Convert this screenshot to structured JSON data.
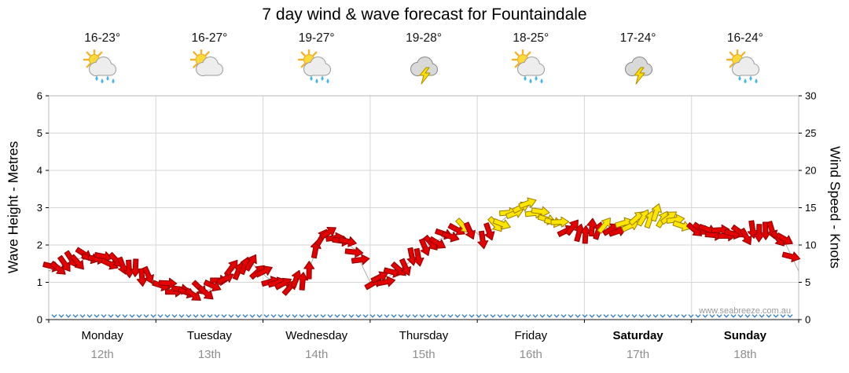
{
  "title": "7 day wind & wave forecast for Fountaindale",
  "watermark": "www.seabreeze.com.au",
  "days": [
    {
      "name": "Monday",
      "date": "12th",
      "temp": "16-23°",
      "icon": "sun-cloud-rain",
      "bold": false
    },
    {
      "name": "Tuesday",
      "date": "13th",
      "temp": "16-27°",
      "icon": "sun-cloud",
      "bold": false
    },
    {
      "name": "Wednesday",
      "date": "14th",
      "temp": "19-27°",
      "icon": "sun-cloud-rain",
      "bold": false
    },
    {
      "name": "Thursday",
      "date": "15th",
      "temp": "19-28°",
      "icon": "storm",
      "bold": false
    },
    {
      "name": "Friday",
      "date": "16th",
      "temp": "18-25°",
      "icon": "sun-cloud-rain",
      "bold": false
    },
    {
      "name": "Saturday",
      "date": "17th",
      "temp": "17-24°",
      "icon": "storm",
      "bold": true
    },
    {
      "name": "Sunday",
      "date": "18th",
      "temp": "16-24°",
      "icon": "sun-cloud-rain",
      "bold": true
    }
  ],
  "axes": {
    "left_label": "Wave Height - Metres",
    "right_label": "Wind Speed - Knots",
    "left_ticks": [
      0,
      1,
      2,
      3,
      4,
      5,
      6
    ],
    "right_ticks": [
      0,
      5,
      10,
      15,
      20,
      25,
      30
    ]
  },
  "chart_data": {
    "type": "line",
    "title": "7 day wind & wave forecast for Fountaindale",
    "x_axis": {
      "unit": "days",
      "range": [
        0,
        7
      ],
      "tick_labels": [
        "Monday 12th",
        "Tuesday 13th",
        "Wednesday 14th",
        "Thursday 15th",
        "Friday 16th",
        "Saturday 17th",
        "Sunday 18th"
      ]
    },
    "left_axis": {
      "label": "Wave Height - Metres",
      "range": [
        0,
        6
      ],
      "ticks": [
        0,
        1,
        2,
        3,
        4,
        5,
        6
      ]
    },
    "right_axis": {
      "label": "Wind Speed - Knots",
      "range": [
        0,
        30
      ],
      "ticks": [
        0,
        5,
        10,
        15,
        20,
        25,
        30
      ]
    },
    "grid": true,
    "legend": false,
    "series": [
      {
        "name": "Wind Speed",
        "axis": "right",
        "unit": "knots",
        "marker": "direction-arrow",
        "x": [
          0.0,
          0.15,
          0.35,
          0.55,
          0.75,
          0.95,
          1.1,
          1.3,
          1.5,
          1.7,
          1.9,
          2.05,
          2.2,
          2.4,
          2.55,
          2.7,
          2.85,
          3.0,
          3.15,
          3.35,
          3.55,
          3.75,
          3.9,
          4.05,
          4.25,
          4.45,
          4.6,
          4.8,
          5.0,
          5.15,
          5.3,
          5.5,
          5.7,
          5.9,
          6.1,
          6.3,
          6.5,
          6.7,
          6.85,
          7.0
        ],
        "values": [
          6.5,
          7.5,
          8.5,
          8.0,
          7.0,
          5.5,
          4.5,
          3.5,
          4.0,
          6.5,
          7.5,
          5.5,
          4.5,
          5.5,
          11.5,
          11.0,
          9.5,
          5.0,
          5.5,
          7.5,
          10.0,
          11.5,
          12.6,
          11.0,
          13.5,
          15.5,
          14.0,
          12.5,
          11.5,
          12.5,
          12.0,
          13.5,
          14.0,
          13.0,
          12.0,
          11.5,
          11.5,
          12.0,
          11.0,
          6.5
        ]
      },
      {
        "name": "Wave Height",
        "axis": "left",
        "unit": "m",
        "marker": "tick",
        "x": [
          0,
          7
        ],
        "values": [
          0.1,
          0.1
        ]
      }
    ]
  },
  "style": {
    "arrow_red": "#e30000",
    "arrow_red_stroke": "#8d0000",
    "arrow_yellow": "#ffe600",
    "arrow_yellow_stroke": "#9c7c00",
    "yellow_threshold_knots": 12.5,
    "wave_color": "#2f7cc4",
    "grid_color": "#d6d6d6",
    "border_color": "#b8b8b8",
    "axis_color": "#444444",
    "tick_label_color": "#000000",
    "date_color": "#8e8e8e",
    "watermark_color": "#9a9a9a"
  }
}
